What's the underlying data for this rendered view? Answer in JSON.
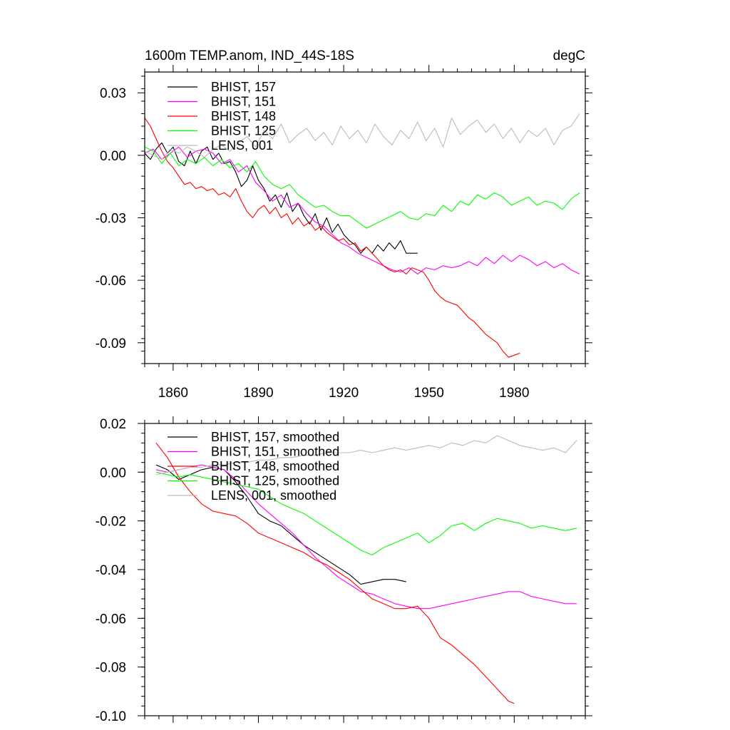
{
  "chart_data": [
    {
      "type": "line",
      "title": "1600m TEMP.anom, IND_44S-18S",
      "units": "degC",
      "xlim": [
        1850,
        2005
      ],
      "ylim": [
        -0.1,
        0.04
      ],
      "x_ticks": [
        1860,
        1890,
        1920,
        1950,
        1980
      ],
      "y_ticks": [
        0.03,
        0.0,
        -0.03,
        -0.06,
        -0.09
      ],
      "y_tick_labels": [
        "0.03",
        "0.00",
        "-0.03",
        "-0.06",
        "-0.09"
      ],
      "legend_position": "top-left",
      "series": [
        {
          "name": "BHIST, 157",
          "color": "#000000",
          "x": [
            1850,
            1852,
            1854,
            1856,
            1858,
            1860,
            1862,
            1864,
            1866,
            1868,
            1870,
            1872,
            1874,
            1876,
            1878,
            1880,
            1882,
            1884,
            1886,
            1888,
            1890,
            1892,
            1894,
            1896,
            1898,
            1900,
            1902,
            1904,
            1906,
            1908,
            1910,
            1912,
            1914,
            1916,
            1918,
            1920,
            1922,
            1924,
            1926,
            1928,
            1930,
            1932,
            1934,
            1936,
            1938,
            1940,
            1942,
            1944,
            1946
          ],
          "y": [
            0.001,
            -0.002,
            0.003,
            0.006,
            0.001,
            0.004,
            -0.003,
            -0.005,
            0.002,
            -0.004,
            0.002,
            0.004,
            -0.002,
            0.001,
            -0.004,
            -0.003,
            -0.008,
            -0.015,
            -0.012,
            -0.005,
            -0.012,
            -0.016,
            -0.022,
            -0.019,
            -0.025,
            -0.018,
            -0.027,
            -0.023,
            -0.029,
            -0.033,
            -0.028,
            -0.036,
            -0.03,
            -0.037,
            -0.033,
            -0.038,
            -0.041,
            -0.043,
            -0.047,
            -0.044,
            -0.047,
            -0.043,
            -0.046,
            -0.042,
            -0.045,
            -0.041,
            -0.047,
            -0.047,
            -0.047
          ]
        },
        {
          "name": "BHIST, 151",
          "color": "#ff00ff",
          "x": [
            1850,
            1853,
            1856,
            1859,
            1862,
            1865,
            1868,
            1871,
            1874,
            1877,
            1880,
            1883,
            1886,
            1889,
            1892,
            1895,
            1898,
            1901,
            1904,
            1907,
            1910,
            1913,
            1916,
            1919,
            1922,
            1925,
            1928,
            1931,
            1934,
            1937,
            1940,
            1943,
            1946,
            1949,
            1952,
            1955,
            1958,
            1961,
            1964,
            1967,
            1970,
            1973,
            1976,
            1979,
            1982,
            1985,
            1988,
            1991,
            1994,
            1997,
            2000,
            2003
          ],
          "y": [
            0.001,
            0.003,
            -0.002,
            0.001,
            0.004,
            -0.001,
            0.002,
            0.003,
            0.001,
            -0.004,
            -0.002,
            -0.008,
            -0.005,
            -0.013,
            -0.017,
            -0.022,
            -0.019,
            -0.025,
            -0.023,
            -0.028,
            -0.032,
            -0.034,
            -0.038,
            -0.042,
            -0.044,
            -0.047,
            -0.049,
            -0.051,
            -0.053,
            -0.055,
            -0.056,
            -0.054,
            -0.057,
            -0.054,
            -0.055,
            -0.053,
            -0.054,
            -0.053,
            -0.051,
            -0.053,
            -0.049,
            -0.052,
            -0.048,
            -0.051,
            -0.048,
            -0.05,
            -0.053,
            -0.051,
            -0.054,
            -0.052,
            -0.055,
            -0.057
          ]
        },
        {
          "name": "BHIST, 148",
          "color": "#ff0000",
          "x": [
            1850,
            1852,
            1854,
            1856,
            1858,
            1860,
            1862,
            1864,
            1866,
            1868,
            1870,
            1872,
            1874,
            1876,
            1878,
            1880,
            1882,
            1884,
            1886,
            1888,
            1890,
            1892,
            1894,
            1896,
            1898,
            1900,
            1902,
            1904,
            1906,
            1908,
            1910,
            1912,
            1914,
            1916,
            1918,
            1920,
            1922,
            1924,
            1926,
            1928,
            1930,
            1932,
            1934,
            1936,
            1938,
            1940,
            1942,
            1944,
            1946,
            1948,
            1950,
            1952,
            1954,
            1956,
            1958,
            1960,
            1962,
            1964,
            1966,
            1968,
            1970,
            1972,
            1974,
            1976,
            1978,
            1980,
            1982
          ],
          "y": [
            0.018,
            0.014,
            0.008,
            0.002,
            -0.003,
            -0.006,
            -0.01,
            -0.014,
            -0.013,
            -0.016,
            -0.015,
            -0.017,
            -0.016,
            -0.019,
            -0.018,
            -0.02,
            -0.016,
            -0.022,
            -0.027,
            -0.03,
            -0.026,
            -0.024,
            -0.028,
            -0.025,
            -0.03,
            -0.028,
            -0.033,
            -0.03,
            -0.034,
            -0.032,
            -0.036,
            -0.034,
            -0.037,
            -0.039,
            -0.041,
            -0.04,
            -0.043,
            -0.042,
            -0.046,
            -0.044,
            -0.047,
            -0.05,
            -0.053,
            -0.055,
            -0.056,
            -0.055,
            -0.057,
            -0.054,
            -0.055,
            -0.056,
            -0.06,
            -0.065,
            -0.068,
            -0.07,
            -0.071,
            -0.072,
            -0.075,
            -0.078,
            -0.08,
            -0.083,
            -0.086,
            -0.088,
            -0.09,
            -0.094,
            -0.097,
            -0.096,
            -0.095
          ]
        },
        {
          "name": "BHIST, 125",
          "color": "#00ff00",
          "x": [
            1850,
            1853,
            1856,
            1859,
            1862,
            1865,
            1868,
            1871,
            1874,
            1877,
            1880,
            1883,
            1886,
            1889,
            1892,
            1895,
            1898,
            1901,
            1904,
            1907,
            1910,
            1913,
            1916,
            1919,
            1922,
            1925,
            1928,
            1931,
            1934,
            1937,
            1940,
            1943,
            1946,
            1949,
            1952,
            1955,
            1958,
            1961,
            1964,
            1967,
            1970,
            1973,
            1976,
            1979,
            1982,
            1985,
            1988,
            1991,
            1994,
            1997,
            2000,
            2003
          ],
          "y": [
            0.004,
            0.002,
            -0.004,
            0.001,
            -0.005,
            -0.002,
            -0.004,
            -0.001,
            -0.005,
            -0.002,
            -0.006,
            -0.004,
            -0.008,
            -0.003,
            -0.01,
            -0.014,
            -0.016,
            -0.014,
            -0.019,
            -0.022,
            -0.025,
            -0.024,
            -0.027,
            -0.029,
            -0.029,
            -0.032,
            -0.035,
            -0.033,
            -0.031,
            -0.029,
            -0.027,
            -0.03,
            -0.031,
            -0.028,
            -0.029,
            -0.024,
            -0.027,
            -0.022,
            -0.024,
            -0.019,
            -0.021,
            -0.018,
            -0.02,
            -0.024,
            -0.022,
            -0.02,
            -0.024,
            -0.022,
            -0.023,
            -0.026,
            -0.021,
            -0.018
          ]
        },
        {
          "name": "LENS, 001",
          "color": "#bbbbbb",
          "x": [
            1850,
            1853,
            1856,
            1859,
            1862,
            1865,
            1868,
            1871,
            1874,
            1877,
            1880,
            1883,
            1886,
            1889,
            1892,
            1895,
            1898,
            1901,
            1904,
            1907,
            1910,
            1913,
            1916,
            1919,
            1922,
            1925,
            1928,
            1931,
            1934,
            1937,
            1940,
            1943,
            1946,
            1949,
            1952,
            1955,
            1958,
            1961,
            1964,
            1967,
            1970,
            1973,
            1976,
            1979,
            1982,
            1985,
            1988,
            1991,
            1994,
            1997,
            2000,
            2003
          ],
          "y": [
            0.002,
            0.0,
            -0.002,
            0.003,
            0.001,
            0.004,
            0.002,
            -0.001,
            0.003,
            0.005,
            0.002,
            0.006,
            0.009,
            0.004,
            0.012,
            0.008,
            0.015,
            0.006,
            0.01,
            0.013,
            0.007,
            0.011,
            0.005,
            0.014,
            0.008,
            0.012,
            0.006,
            0.015,
            0.009,
            0.005,
            0.012,
            0.008,
            0.016,
            0.007,
            0.013,
            0.004,
            0.018,
            0.01,
            0.014,
            0.017,
            0.011,
            0.015,
            0.008,
            0.013,
            0.006,
            0.012,
            0.009,
            0.013,
            0.005,
            0.012,
            0.014,
            0.02
          ]
        }
      ]
    },
    {
      "type": "line",
      "xlim": [
        1850,
        2005
      ],
      "ylim": [
        -0.1,
        0.02
      ],
      "x_ticks": [
        1860,
        1890,
        1920,
        1950,
        1980
      ],
      "y_ticks": [
        0.02,
        0.0,
        -0.02,
        -0.04,
        -0.06,
        -0.08,
        -0.1
      ],
      "y_tick_labels": [
        "0.02",
        "0.00",
        "-0.02",
        "-0.04",
        "-0.06",
        "-0.08",
        "-0.10"
      ],
      "legend_position": "top-left",
      "series": [
        {
          "name": "BHIST, 157, smoothed",
          "color": "#000000",
          "x": [
            1854,
            1858,
            1862,
            1866,
            1870,
            1874,
            1878,
            1882,
            1886,
            1890,
            1894,
            1898,
            1902,
            1906,
            1910,
            1914,
            1918,
            1922,
            1926,
            1930,
            1934,
            1938,
            1942
          ],
          "y": [
            0.003,
            0.001,
            -0.003,
            -0.001,
            0.001,
            0.002,
            0.001,
            -0.004,
            -0.01,
            -0.017,
            -0.02,
            -0.022,
            -0.026,
            -0.03,
            -0.033,
            -0.036,
            -0.039,
            -0.042,
            -0.046,
            -0.045,
            -0.044,
            -0.044,
            -0.045
          ]
        },
        {
          "name": "BHIST, 151, smoothed",
          "color": "#ff00ff",
          "x": [
            1854,
            1858,
            1862,
            1866,
            1870,
            1874,
            1878,
            1882,
            1886,
            1890,
            1894,
            1898,
            1902,
            1906,
            1910,
            1914,
            1918,
            1922,
            1926,
            1930,
            1934,
            1938,
            1942,
            1946,
            1950,
            1954,
            1958,
            1962,
            1966,
            1970,
            1974,
            1978,
            1982,
            1986,
            1990,
            1994,
            1998,
            2002
          ],
          "y": [
            0.001,
            0.0,
            0.001,
            0.002,
            0.003,
            0.002,
            0.001,
            -0.003,
            -0.008,
            -0.013,
            -0.017,
            -0.021,
            -0.025,
            -0.03,
            -0.035,
            -0.039,
            -0.043,
            -0.046,
            -0.049,
            -0.05,
            -0.052,
            -0.054,
            -0.055,
            -0.056,
            -0.056,
            -0.055,
            -0.054,
            -0.053,
            -0.052,
            -0.051,
            -0.05,
            -0.049,
            -0.049,
            -0.051,
            -0.052,
            -0.053,
            -0.054,
            -0.054
          ]
        },
        {
          "name": "BHIST, 148, smoothed",
          "color": "#ff0000",
          "x": [
            1854,
            1858,
            1862,
            1866,
            1870,
            1874,
            1878,
            1882,
            1886,
            1890,
            1894,
            1898,
            1902,
            1906,
            1910,
            1914,
            1918,
            1922,
            1926,
            1930,
            1934,
            1938,
            1942,
            1946,
            1950,
            1954,
            1958,
            1962,
            1966,
            1970,
            1974,
            1978,
            1980
          ],
          "y": [
            0.012,
            0.006,
            -0.002,
            -0.008,
            -0.013,
            -0.016,
            -0.017,
            -0.018,
            -0.021,
            -0.025,
            -0.027,
            -0.029,
            -0.031,
            -0.033,
            -0.036,
            -0.038,
            -0.041,
            -0.044,
            -0.048,
            -0.052,
            -0.054,
            -0.056,
            -0.056,
            -0.055,
            -0.06,
            -0.068,
            -0.071,
            -0.075,
            -0.079,
            -0.084,
            -0.089,
            -0.094,
            -0.095
          ]
        },
        {
          "name": "BHIST, 125, smoothed",
          "color": "#00ff00",
          "x": [
            1854,
            1858,
            1862,
            1866,
            1870,
            1874,
            1878,
            1882,
            1886,
            1890,
            1894,
            1898,
            1902,
            1906,
            1910,
            1914,
            1918,
            1922,
            1926,
            1930,
            1934,
            1938,
            1942,
            1946,
            1950,
            1954,
            1958,
            1962,
            1966,
            1970,
            1974,
            1978,
            1982,
            1986,
            1990,
            1994,
            1998,
            2002
          ],
          "y": [
            0.0,
            -0.001,
            -0.002,
            -0.001,
            -0.002,
            -0.003,
            -0.004,
            -0.005,
            -0.006,
            -0.007,
            -0.01,
            -0.013,
            -0.015,
            -0.017,
            -0.02,
            -0.023,
            -0.026,
            -0.029,
            -0.032,
            -0.034,
            -0.031,
            -0.029,
            -0.027,
            -0.025,
            -0.029,
            -0.026,
            -0.022,
            -0.021,
            -0.024,
            -0.021,
            -0.019,
            -0.02,
            -0.021,
            -0.023,
            -0.022,
            -0.023,
            -0.024,
            -0.023
          ]
        },
        {
          "name": "LENS, 001, smoothed",
          "color": "#bbbbbb",
          "x": [
            1854,
            1858,
            1862,
            1866,
            1870,
            1874,
            1878,
            1882,
            1886,
            1890,
            1894,
            1898,
            1902,
            1906,
            1910,
            1914,
            1918,
            1922,
            1926,
            1930,
            1934,
            1938,
            1942,
            1946,
            1950,
            1954,
            1958,
            1962,
            1966,
            1970,
            1974,
            1978,
            1982,
            1986,
            1990,
            1994,
            1998,
            2002
          ],
          "y": [
            -0.001,
            0.0,
            0.001,
            0.002,
            0.002,
            0.003,
            0.003,
            0.004,
            0.004,
            0.005,
            0.005,
            0.006,
            0.006,
            0.007,
            0.007,
            0.008,
            0.008,
            0.008,
            0.009,
            0.008,
            0.009,
            0.01,
            0.009,
            0.01,
            0.011,
            0.01,
            0.012,
            0.011,
            0.013,
            0.012,
            0.015,
            0.013,
            0.011,
            0.01,
            0.009,
            0.01,
            0.008,
            0.013
          ]
        }
      ]
    }
  ]
}
